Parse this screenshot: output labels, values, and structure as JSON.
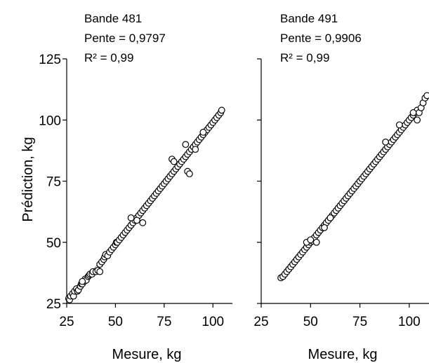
{
  "chart_data": [
    {
      "type": "scatter",
      "title_lines": [
        "Bande 481",
        "Pente = 0,9797",
        "R² = 0,99"
      ],
      "xlabel": "Mesure, kg",
      "ylabel": "Prédiction, kg",
      "xlim": [
        25,
        110
      ],
      "ylim": [
        25,
        125
      ],
      "xticks": [
        25,
        50,
        75,
        100
      ],
      "xtick_labels": [
        "25",
        "50",
        "75",
        "100"
      ],
      "yticks": [
        25,
        50,
        75,
        100,
        125
      ],
      "ytick_labels": [
        "25",
        "50",
        "75",
        "100",
        "125"
      ],
      "trendline": {
        "slope": 0.9797,
        "intercept": 0.9
      },
      "grid": false,
      "legend": "none",
      "series": [
        {
          "x": [
            26,
            26.5,
            27,
            28,
            28.5,
            29,
            30,
            30.5,
            31,
            32,
            32.5,
            33,
            34,
            34.5,
            35,
            36,
            36.5,
            37,
            38,
            38.5,
            40,
            41,
            42,
            43,
            44,
            44.5,
            45,
            46,
            47,
            48,
            49,
            50,
            50.5,
            51,
            52,
            53,
            54,
            55,
            56,
            57,
            58,
            59,
            60,
            61,
            62,
            63,
            64,
            65,
            66,
            67,
            68,
            69,
            70,
            71,
            72,
            73,
            74,
            75,
            76,
            77,
            78,
            79,
            80,
            81,
            82,
            83,
            84,
            85,
            86,
            87,
            88,
            89,
            90,
            91,
            92,
            93,
            94,
            95,
            96,
            97,
            98,
            99,
            100,
            101,
            102,
            103,
            104,
            104.5,
            79,
            80,
            87,
            88,
            91,
            64,
            58,
            86,
            95,
            42,
            61,
            33
          ],
          "y": [
            27,
            26.5,
            28,
            29,
            28,
            30,
            31,
            30,
            30.5,
            32,
            33,
            33,
            34,
            35,
            34.5,
            36,
            36.5,
            37,
            37,
            38,
            38,
            38.5,
            41,
            42,
            43,
            44,
            45,
            44.5,
            46,
            47,
            48,
            49,
            50,
            50,
            51,
            52,
            53,
            54,
            55,
            56,
            57,
            58,
            59,
            60,
            61,
            62,
            63,
            64,
            65,
            66,
            67,
            68,
            69,
            70,
            71,
            72,
            73,
            74,
            75,
            76,
            77,
            78,
            79,
            80,
            81,
            82,
            83,
            84,
            85,
            86,
            87,
            88,
            89,
            90,
            91,
            92,
            93,
            94,
            95,
            96,
            97,
            98,
            99,
            100,
            101,
            102,
            103,
            104,
            84,
            83,
            79,
            78,
            88,
            58,
            60,
            90,
            95,
            38,
            59,
            34
          ]
        }
      ]
    },
    {
      "type": "scatter",
      "title_lines": [
        "Bande 491",
        "Pente = 0,9906",
        "R² = 0,99"
      ],
      "xlabel": "Mesure, kg",
      "ylabel": "",
      "xlim": [
        25,
        110
      ],
      "ylim": [
        25,
        125
      ],
      "xticks": [
        25,
        50,
        75,
        100
      ],
      "xtick_labels": [
        "25",
        "50",
        "75",
        "100"
      ],
      "yticks": [
        25,
        50,
        75,
        100,
        125
      ],
      "ytick_labels": [],
      "trendline": {
        "slope": 0.9906,
        "intercept": 0.4
      },
      "grid": false,
      "legend": "none",
      "series": [
        {
          "x": [
            35,
            36,
            37,
            38,
            39,
            40,
            41,
            42,
            43,
            44,
            45,
            46,
            47,
            48,
            49,
            50,
            51,
            52,
            53,
            54,
            55,
            56,
            57,
            58,
            59,
            60,
            61,
            62,
            63,
            64,
            65,
            66,
            67,
            68,
            69,
            70,
            71,
            72,
            73,
            74,
            75,
            76,
            77,
            78,
            79,
            80,
            81,
            82,
            83,
            84,
            85,
            86,
            87,
            88,
            89,
            90,
            91,
            92,
            93,
            94,
            95,
            96,
            97,
            98,
            99,
            100,
            101,
            102,
            103,
            104,
            105,
            106,
            107,
            108,
            109,
            48,
            50,
            53,
            57,
            60,
            88,
            95,
            102,
            104
          ],
          "y": [
            35.5,
            36,
            37,
            38,
            39,
            40,
            41,
            42,
            43,
            44,
            45,
            46,
            47,
            48,
            49,
            50,
            50.5,
            52,
            53,
            54,
            55,
            56,
            57,
            58,
            59,
            60,
            61,
            62,
            63,
            64,
            65,
            66,
            67,
            68,
            69,
            70,
            71,
            72,
            73,
            74,
            75,
            76,
            77,
            78,
            79,
            80,
            81,
            82,
            83,
            84,
            85,
            86,
            87,
            88,
            89,
            90,
            91,
            92,
            93,
            94,
            95,
            96,
            97,
            98,
            99,
            100,
            101,
            102,
            103,
            104,
            103,
            105,
            107,
            109,
            110,
            50,
            51,
            50,
            56,
            60,
            91,
            98,
            103,
            100
          ]
        }
      ]
    }
  ]
}
